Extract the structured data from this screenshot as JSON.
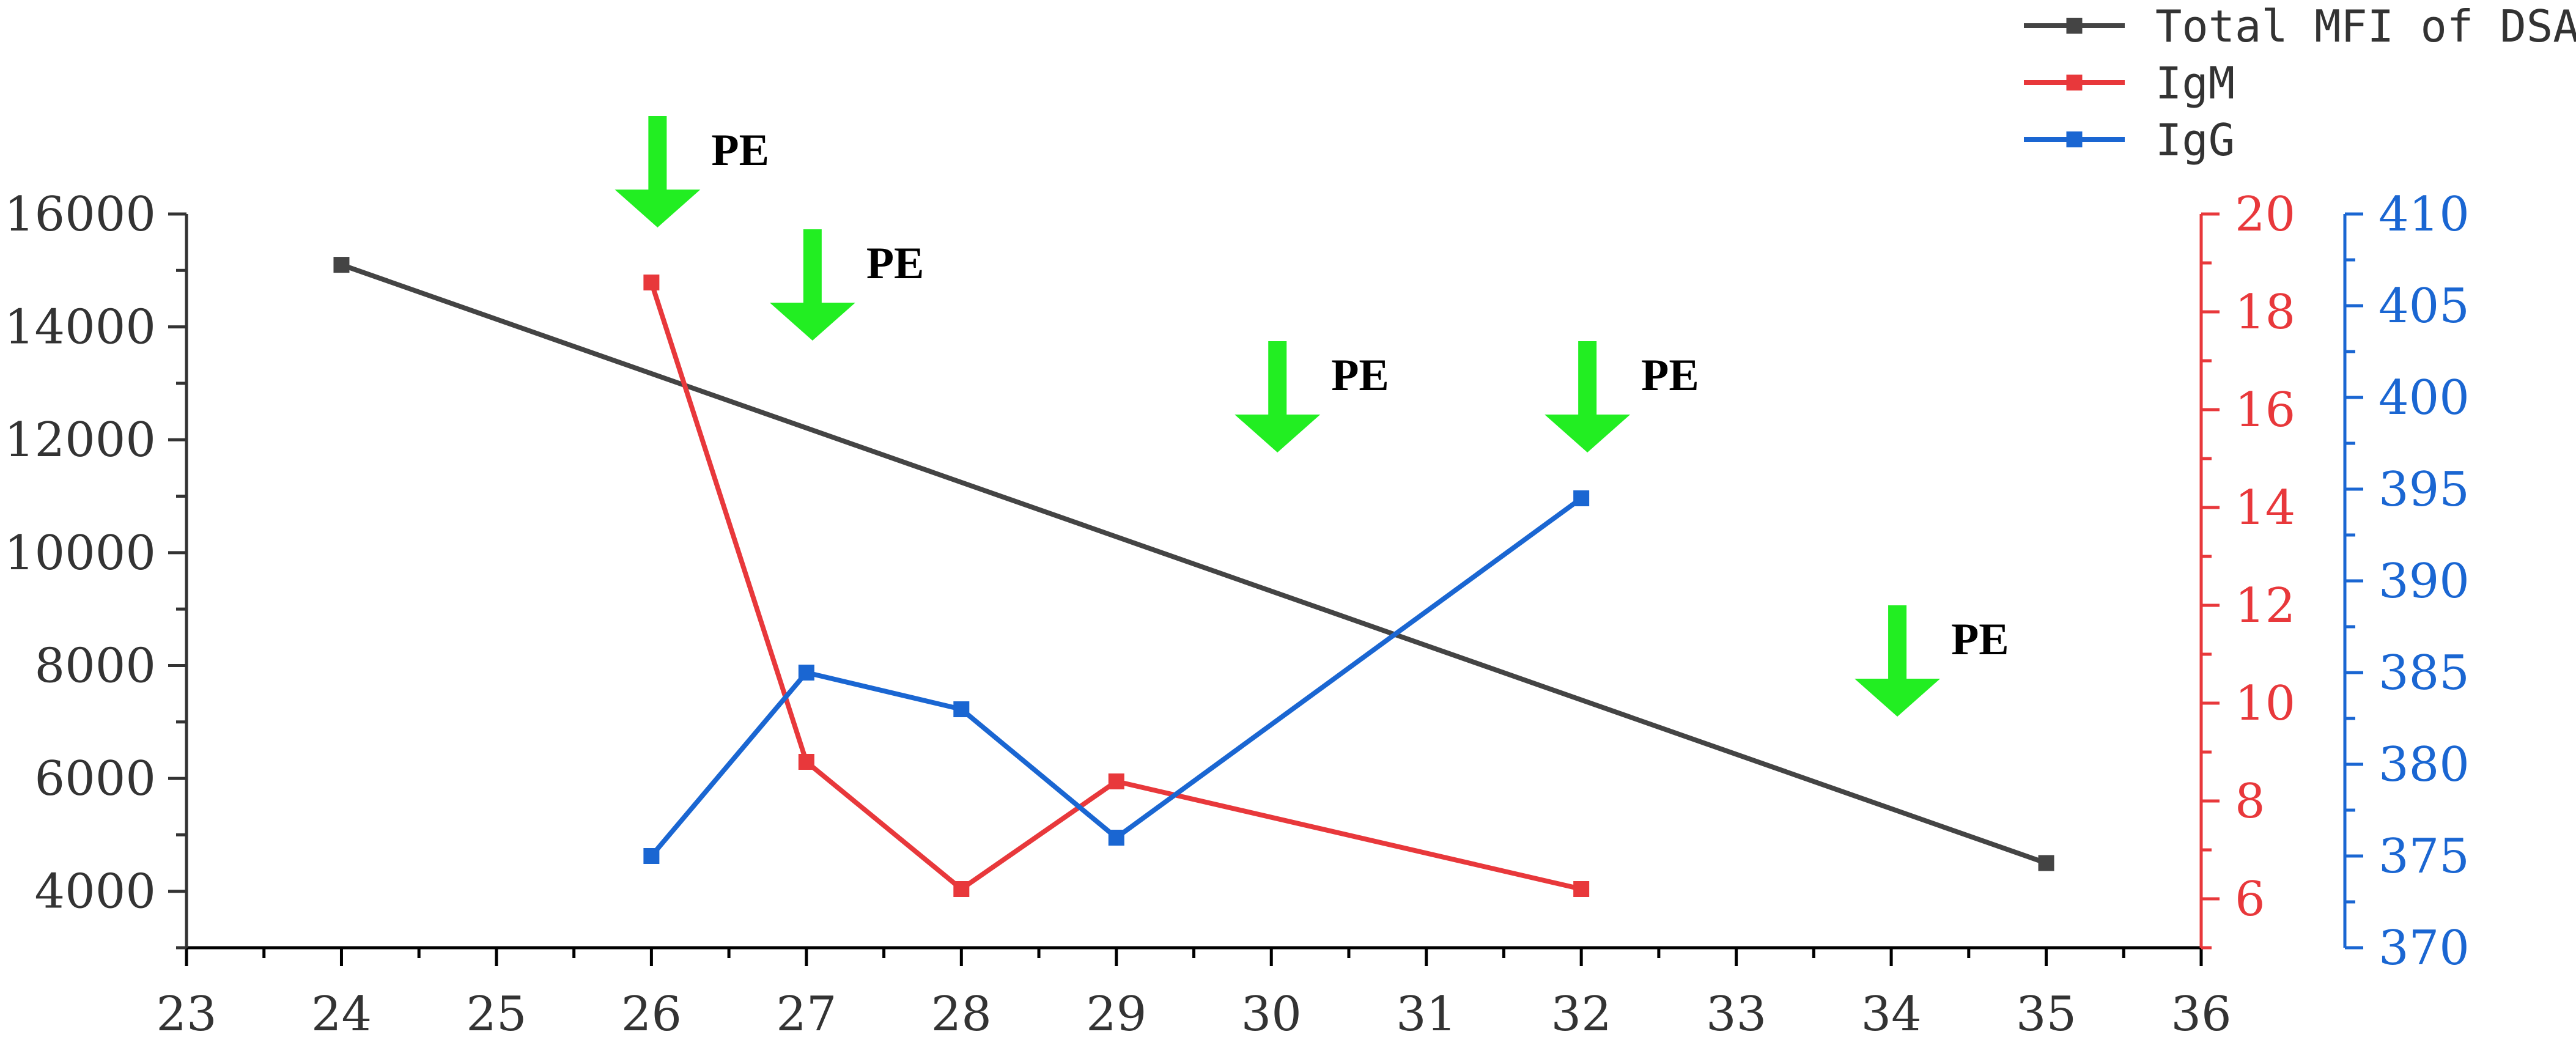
{
  "chart_data": {
    "type": "line",
    "title": "",
    "xlabel": "",
    "ylabel": "",
    "xlim": [
      23,
      36
    ],
    "x_ticks": [
      23,
      24,
      25,
      26,
      27,
      28,
      29,
      30,
      31,
      32,
      33,
      34,
      35,
      36
    ],
    "y_axes": {
      "left": {
        "ylim": [
          3000,
          16000
        ],
        "ticks": [
          4000,
          6000,
          8000,
          10000,
          12000,
          14000,
          16000
        ],
        "color": "#444444"
      },
      "right1": {
        "ylim": [
          5,
          20
        ],
        "ticks": [
          6,
          8,
          10,
          12,
          14,
          16,
          18,
          20
        ],
        "color": "#e8383b"
      },
      "right2": {
        "ylim": [
          370,
          410
        ],
        "ticks": [
          370,
          375,
          380,
          385,
          390,
          395,
          400,
          405,
          410
        ],
        "color": "#1a66d2"
      }
    },
    "series": [
      {
        "name": "Total MFI of DSA",
        "axis": "left",
        "color": "#444444",
        "x": [
          24,
          35
        ],
        "y": [
          15100,
          4500
        ]
      },
      {
        "name": "IgM",
        "axis": "right1",
        "color": "#e8383b",
        "x": [
          26,
          27,
          28,
          29,
          32
        ],
        "y": [
          18.6,
          8.8,
          6.2,
          8.4,
          6.2
        ]
      },
      {
        "name": "IgG",
        "axis": "right2",
        "color": "#1a66d2",
        "x": [
          26,
          27,
          28,
          29,
          32
        ],
        "y": [
          375,
          385,
          383,
          376,
          394.5
        ]
      }
    ],
    "annotations": [
      {
        "text": "PE",
        "x": 26,
        "arrow_color": "#22ee22"
      },
      {
        "text": "PE",
        "x": 27,
        "arrow_color": "#22ee22"
      },
      {
        "text": "PE",
        "x": 30,
        "arrow_color": "#22ee22"
      },
      {
        "text": "PE",
        "x": 32,
        "arrow_color": "#22ee22"
      },
      {
        "text": "PE",
        "x": 34,
        "arrow_color": "#22ee22"
      }
    ],
    "legend_position": "top-right",
    "grid": false
  }
}
